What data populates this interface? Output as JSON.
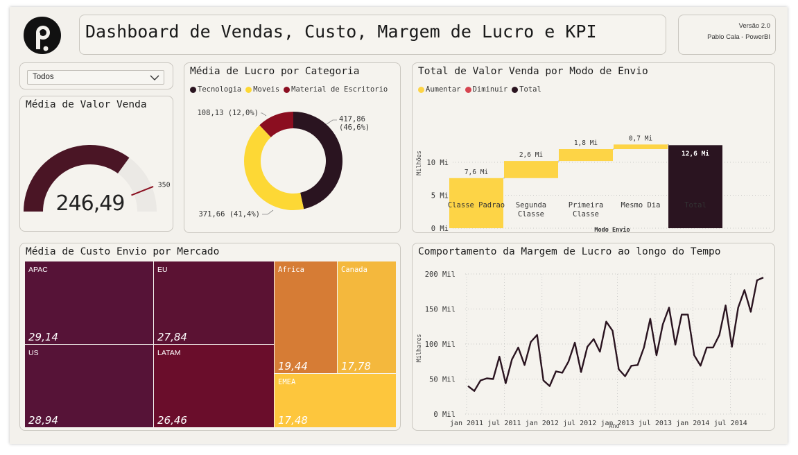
{
  "header": {
    "title": "Dashboard de Vendas, Custo, Margem de Lucro e KPI",
    "version": "Versão 2.0",
    "author": "Pablo Cala - PowerBI"
  },
  "filter": {
    "selected": "Todos"
  },
  "gauge": {
    "title": "Média de Valor Venda",
    "value": 246.49,
    "value_label": "246,49",
    "max": 350,
    "target": 350,
    "target_label": "350",
    "fill_fraction": 0.7,
    "colors": {
      "fill": "#4a1525",
      "track": "#ebe9e5",
      "target": "#8a1020"
    }
  },
  "donut": {
    "title": "Média de Lucro por Categoria",
    "legend": [
      {
        "name": "Tecnologia",
        "color": "#2a1420"
      },
      {
        "name": "Moveis",
        "color": "#fdd835"
      },
      {
        "name": "Material de Escritorio",
        "color": "#8b0e20"
      }
    ],
    "labels": {
      "tecnologia": [
        "417,86",
        "(46,6%)"
      ],
      "moveis": "371,66 (41,4%)",
      "escritorio": "108,13 (12,0%)"
    }
  },
  "waterfall": {
    "title": "Total de Valor Venda por Modo de Envio",
    "legend": [
      {
        "name": "Aumentar",
        "color": "#fdd446"
      },
      {
        "name": "Diminuir",
        "color": "#d64550"
      },
      {
        "name": "Total",
        "color": "#2a1420"
      }
    ],
    "ylabel": "Milhões",
    "xlabel": "Modo Envio",
    "yticks": [
      "0 Mi",
      "5 Mi",
      "10 Mi"
    ],
    "bar_labels": [
      "7,6 Mi",
      "2,6 Mi",
      "1,8 Mi",
      "0,7 Mi",
      "12,6 Mi"
    ],
    "categories": [
      [
        "Classe Padrao"
      ],
      [
        "Segunda",
        "Classe"
      ],
      [
        "Primeira",
        "Classe"
      ],
      [
        "Mesmo Dia"
      ],
      [
        "Total"
      ]
    ]
  },
  "treemap": {
    "title": "Média de Custo Envio por Mercado",
    "items": [
      {
        "name": "APAC",
        "value": "29,14",
        "color": "#561337"
      },
      {
        "name": "US",
        "value": "28,94",
        "color": "#561337"
      },
      {
        "name": "EU",
        "value": "27,84",
        "color": "#5b1233"
      },
      {
        "name": "LATAM",
        "value": "26,46",
        "color": "#6a0d2b"
      },
      {
        "name": "Africa",
        "value": "19,44",
        "color": "#d67c35"
      },
      {
        "name": "Canada",
        "value": "17,78",
        "color": "#f4b83d"
      },
      {
        "name": "EMEA",
        "value": "17,48",
        "color": "#fdc63d"
      }
    ]
  },
  "line": {
    "title": "Comportamento da Margem de Lucro ao longo do Tempo",
    "ylabel": "Milhares",
    "xlabel": "Ano",
    "yticks": [
      "0 Mil",
      "50 Mil",
      "100 Mil",
      "150 Mil",
      "200 Mil"
    ],
    "xticks": [
      "jan 2011",
      "jul 2011",
      "jan 2012",
      "jul 2012",
      "jan 2013",
      "jul 2013",
      "jan 2014",
      "jul 2014"
    ]
  },
  "chart_data": [
    {
      "type": "pie",
      "title": "Média de Lucro por Categoria",
      "categories": [
        "Tecnologia",
        "Moveis",
        "Material de Escritorio"
      ],
      "values": [
        417.86,
        371.66,
        108.13
      ],
      "percent": [
        46.6,
        41.4,
        12.0
      ]
    },
    {
      "type": "bar",
      "title": "Total de Valor Venda por Modo de Envio",
      "categories": [
        "Classe Padrao",
        "Segunda Classe",
        "Primeira Classe",
        "Mesmo Dia",
        "Total"
      ],
      "values": [
        7.6,
        2.6,
        1.8,
        0.7,
        12.6
      ],
      "kind": [
        "Aumentar",
        "Aumentar",
        "Aumentar",
        "Aumentar",
        "Total"
      ],
      "ylim": [
        0,
        13
      ]
    },
    {
      "type": "heatmap",
      "title": "Média de Custo Envio por Mercado",
      "categories": [
        "APAC",
        "US",
        "EU",
        "LATAM",
        "Africa",
        "Canada",
        "EMEA"
      ],
      "values": [
        29.14,
        28.94,
        27.84,
        26.46,
        19.44,
        17.78,
        17.48
      ]
    },
    {
      "type": "line",
      "title": "Comportamento da Margem de Lucro ao longo do Tempo",
      "xlabel": "Ano",
      "ylabel": "Milhares",
      "x_start": "jan 2011",
      "x_step": "month",
      "ylim": [
        0,
        200
      ],
      "values": [
        40,
        33,
        48,
        51,
        50,
        82,
        44,
        78,
        95,
        70,
        103,
        113,
        48,
        40,
        61,
        59,
        75,
        102,
        60,
        96,
        107,
        89,
        132,
        119,
        64,
        54,
        69,
        70,
        95,
        136,
        84,
        128,
        152,
        99,
        142,
        142,
        84,
        69,
        95,
        95,
        113,
        155,
        96,
        152,
        177,
        146,
        191,
        195
      ]
    }
  ]
}
